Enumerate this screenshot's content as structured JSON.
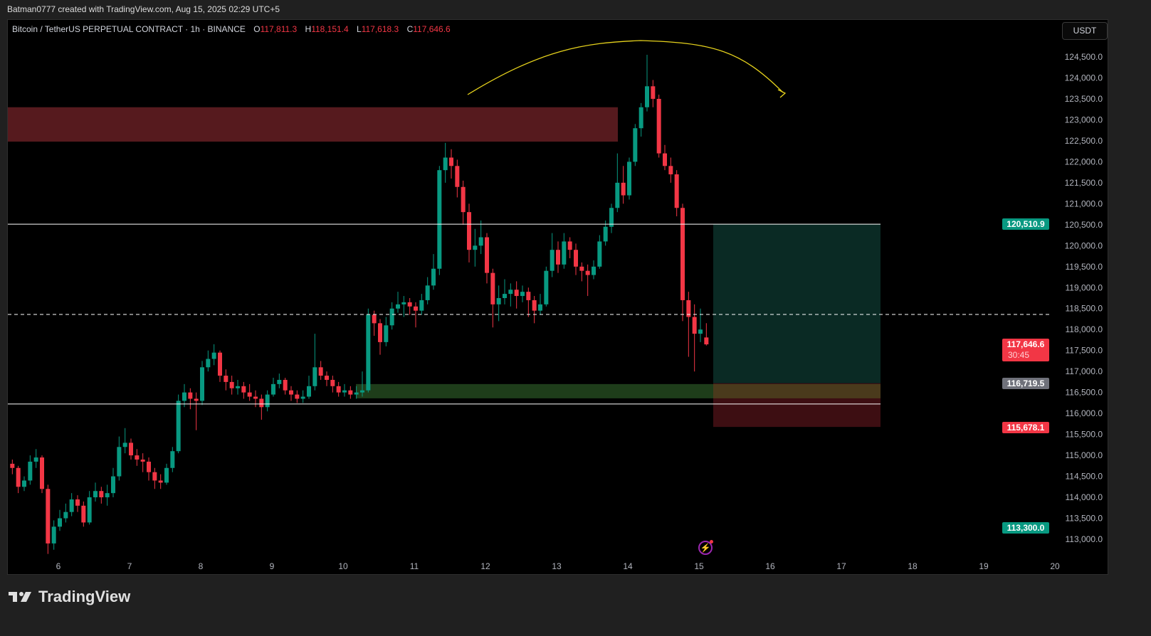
{
  "header": {
    "attribution": "Batman0777 created with TradingView.com, Aug 15, 2025 02:29 UTC+5",
    "symbol": "Bitcoin / TetherUS PERPETUAL CONTRACT · 1h · BINANCE",
    "o_label": "O",
    "o_value": "117,811.3",
    "h_label": "H",
    "h_value": "118,151.4",
    "l_label": "L",
    "l_value": "117,618.3",
    "c_label": "C",
    "c_value": "117,646.6",
    "currency_button": "USDT"
  },
  "price_labels": {
    "target": "120,510.9",
    "last_price": "117,646.6",
    "countdown": "30:45",
    "entry": "116,719.5",
    "stop": "115,678.1",
    "marker": "113,300.0"
  },
  "footer": {
    "logo_text": "TradingView"
  },
  "colors": {
    "up": "#089981",
    "down": "#f23645",
    "supply_zone": "#561a1e",
    "demand_zone": "#1e3d1a",
    "target_box": "#0a2a24",
    "stop_box": "#3d0e12",
    "curve": "#e6d21c"
  },
  "chart_data": {
    "type": "candlestick",
    "title": "Bitcoin / TetherUS PERPETUAL CONTRACT · 1h · BINANCE",
    "first_candle_time": "2025-08-05 08:00",
    "candle_step_hours": 2,
    "ylim": [
      112600,
      125350
    ],
    "y_ticks": [
      "113,000.0",
      "113,500.0",
      "114,000.0",
      "114,500.0",
      "115,000.0",
      "115,500.0",
      "116,000.0",
      "116,500.0",
      "117,000.0",
      "117,500.0",
      "118,000.0",
      "118,500.0",
      "119,000.0",
      "119,500.0",
      "120,000.0",
      "120,500.0",
      "121,000.0",
      "121,500.0",
      "122,000.0",
      "122,500.0",
      "123,000.0",
      "123,500.0",
      "124,000.0",
      "124,500.0"
    ],
    "x_ticks": [
      "6",
      "7",
      "8",
      "9",
      "10",
      "11",
      "12",
      "13",
      "14",
      "15",
      "16",
      "17",
      "18",
      "19",
      "20"
    ],
    "candles_ohlc": [
      [
        114800,
        114900,
        114550,
        114700
      ],
      [
        114700,
        114750,
        114100,
        114250
      ],
      [
        114250,
        114500,
        114150,
        114400
      ],
      [
        114400,
        115000,
        114300,
        114850
      ],
      [
        114850,
        115150,
        114700,
        114950
      ],
      [
        114950,
        115000,
        114100,
        114200
      ],
      [
        114200,
        114300,
        112650,
        112900
      ],
      [
        112900,
        113450,
        112750,
        113300
      ],
      [
        113300,
        113700,
        113200,
        113500
      ],
      [
        113500,
        113850,
        113400,
        113650
      ],
      [
        113650,
        114100,
        113550,
        113950
      ],
      [
        113950,
        114050,
        113650,
        113800
      ],
      [
        113800,
        113900,
        113300,
        113400
      ],
      [
        113400,
        114150,
        113350,
        114000
      ],
      [
        114000,
        114350,
        113900,
        114150
      ],
      [
        114150,
        114250,
        113850,
        114000
      ],
      [
        114000,
        114300,
        113800,
        114100
      ],
      [
        114100,
        114700,
        114000,
        114500
      ],
      [
        114500,
        115450,
        114400,
        115200
      ],
      [
        115200,
        115650,
        115050,
        115300
      ],
      [
        115300,
        115400,
        114900,
        115000
      ],
      [
        115000,
        115150,
        114750,
        114900
      ],
      [
        114900,
        115050,
        114600,
        114850
      ],
      [
        114850,
        114950,
        114400,
        114600
      ],
      [
        114600,
        114700,
        114200,
        114400
      ],
      [
        114400,
        114550,
        114200,
        114350
      ],
      [
        114350,
        114800,
        114300,
        114700
      ],
      [
        114700,
        115200,
        114600,
        115100
      ],
      [
        115100,
        116450,
        115050,
        116300
      ],
      [
        116300,
        116700,
        116150,
        116500
      ],
      [
        116500,
        116600,
        116100,
        116350
      ],
      [
        116350,
        116500,
        115600,
        116300
      ],
      [
        116300,
        117250,
        116200,
        117100
      ],
      [
        117100,
        117500,
        117000,
        117300
      ],
      [
        117300,
        117650,
        117150,
        117450
      ],
      [
        117450,
        117500,
        116750,
        116900
      ],
      [
        116900,
        117050,
        116550,
        116750
      ],
      [
        116750,
        116900,
        116450,
        116600
      ],
      [
        116600,
        116800,
        116450,
        116650
      ],
      [
        116650,
        116750,
        116350,
        116500
      ],
      [
        116500,
        116700,
        116300,
        116400
      ],
      [
        116400,
        116550,
        116150,
        116350
      ],
      [
        116350,
        116450,
        115850,
        116150
      ],
      [
        116150,
        116550,
        116050,
        116450
      ],
      [
        116450,
        116850,
        116400,
        116700
      ],
      [
        116700,
        116950,
        116600,
        116800
      ],
      [
        116800,
        116850,
        116450,
        116550
      ],
      [
        116550,
        116650,
        116300,
        116450
      ],
      [
        116450,
        116550,
        116250,
        116350
      ],
      [
        116350,
        116550,
        116250,
        116400
      ],
      [
        116400,
        116900,
        116350,
        116650
      ],
      [
        116650,
        117900,
        116550,
        117100
      ],
      [
        117100,
        117250,
        116800,
        116900
      ],
      [
        116900,
        117000,
        116650,
        116800
      ],
      [
        116800,
        116900,
        116500,
        116650
      ],
      [
        116650,
        116750,
        116400,
        116500
      ],
      [
        116500,
        116700,
        116400,
        116550
      ],
      [
        116550,
        116650,
        116350,
        116450
      ],
      [
        116450,
        116650,
        116350,
        116500
      ],
      [
        116500,
        117000,
        116400,
        116550
      ],
      [
        116550,
        118500,
        116500,
        118350
      ],
      [
        118350,
        118450,
        117850,
        118150
      ],
      [
        118150,
        118250,
        117400,
        117700
      ],
      [
        117700,
        118300,
        117600,
        118100
      ],
      [
        118100,
        118650,
        118000,
        118500
      ],
      [
        118500,
        118900,
        118400,
        118600
      ],
      [
        118600,
        118800,
        118300,
        118650
      ],
      [
        118650,
        118750,
        118350,
        118550
      ],
      [
        118550,
        118650,
        118050,
        118450
      ],
      [
        118450,
        118850,
        118350,
        118700
      ],
      [
        118700,
        119250,
        118600,
        119050
      ],
      [
        119050,
        119800,
        118950,
        119450
      ],
      [
        119450,
        121900,
        119300,
        121800
      ],
      [
        121800,
        122450,
        121500,
        122100
      ],
      [
        122100,
        122300,
        121600,
        121900
      ],
      [
        121900,
        122050,
        121150,
        121400
      ],
      [
        121400,
        121550,
        120500,
        120800
      ],
      [
        120800,
        121000,
        119600,
        119900
      ],
      [
        119900,
        120400,
        119500,
        120000
      ],
      [
        120000,
        120600,
        119800,
        120200
      ],
      [
        120200,
        120300,
        119100,
        119350
      ],
      [
        119350,
        119450,
        118050,
        118600
      ],
      [
        118600,
        119050,
        118200,
        118750
      ],
      [
        118750,
        119200,
        118600,
        118850
      ],
      [
        118850,
        119100,
        118550,
        118950
      ],
      [
        118950,
        119150,
        118500,
        118800
      ],
      [
        118800,
        119050,
        118650,
        118900
      ],
      [
        118900,
        119000,
        118300,
        118700
      ],
      [
        118700,
        118800,
        118150,
        118450
      ],
      [
        118450,
        118850,
        118350,
        118600
      ],
      [
        118600,
        119500,
        118550,
        119400
      ],
      [
        119400,
        120300,
        119250,
        119900
      ],
      [
        119900,
        120100,
        119350,
        119550
      ],
      [
        119550,
        120300,
        119450,
        120100
      ],
      [
        120100,
        120200,
        119700,
        119900
      ],
      [
        119900,
        120050,
        119300,
        119500
      ],
      [
        119500,
        119600,
        119150,
        119400
      ],
      [
        119400,
        119550,
        118800,
        119300
      ],
      [
        119300,
        119650,
        119200,
        119500
      ],
      [
        119500,
        120250,
        119450,
        120100
      ],
      [
        120100,
        120600,
        120000,
        120450
      ],
      [
        120450,
        121000,
        120300,
        120900
      ],
      [
        120900,
        122200,
        120800,
        121500
      ],
      [
        121500,
        121900,
        121000,
        121200
      ],
      [
        121200,
        122100,
        121100,
        122000
      ],
      [
        122000,
        122900,
        121900,
        122800
      ],
      [
        122800,
        123400,
        122600,
        123300
      ],
      [
        123300,
        124550,
        123200,
        123800
      ],
      [
        123800,
        123950,
        123300,
        123500
      ],
      [
        123500,
        123600,
        122100,
        122200
      ],
      [
        122200,
        122400,
        121800,
        121900
      ],
      [
        121900,
        122100,
        121500,
        121700
      ],
      [
        121700,
        121800,
        120700,
        120900
      ],
      [
        120900,
        121000,
        118200,
        118700
      ],
      [
        118700,
        118900,
        117350,
        118300
      ],
      [
        118300,
        118600,
        117000,
        117900
      ],
      [
        117900,
        118500,
        117700,
        118000
      ],
      [
        117811.3,
        118151.4,
        117618.3,
        117646.6
      ]
    ],
    "drawings": {
      "supply_zone": {
        "from_day": 5.3,
        "to_day": 13.86,
        "top": 123300,
        "bottom": 122480
      },
      "demand_zone": {
        "from_day": 10.18,
        "to_day": 15.2,
        "top": 116700,
        "bottom": 116360
      },
      "horizontal_lines": [
        {
          "price": 120510.9,
          "style": "solid"
        },
        {
          "price": 116225,
          "style": "solid"
        },
        {
          "price": 118360,
          "style": "dashed"
        }
      ],
      "long_position": {
        "from_day": 15.2,
        "to_day": 17.55,
        "entry": 116719.5,
        "target": 120510.9,
        "stop": 115678.1
      },
      "projection_curve": "arc from Aug 11 18:00 near 123,500 peaking about 125,300 on Aug 14, ending with arrow on Aug 16 near 123,550"
    }
  }
}
